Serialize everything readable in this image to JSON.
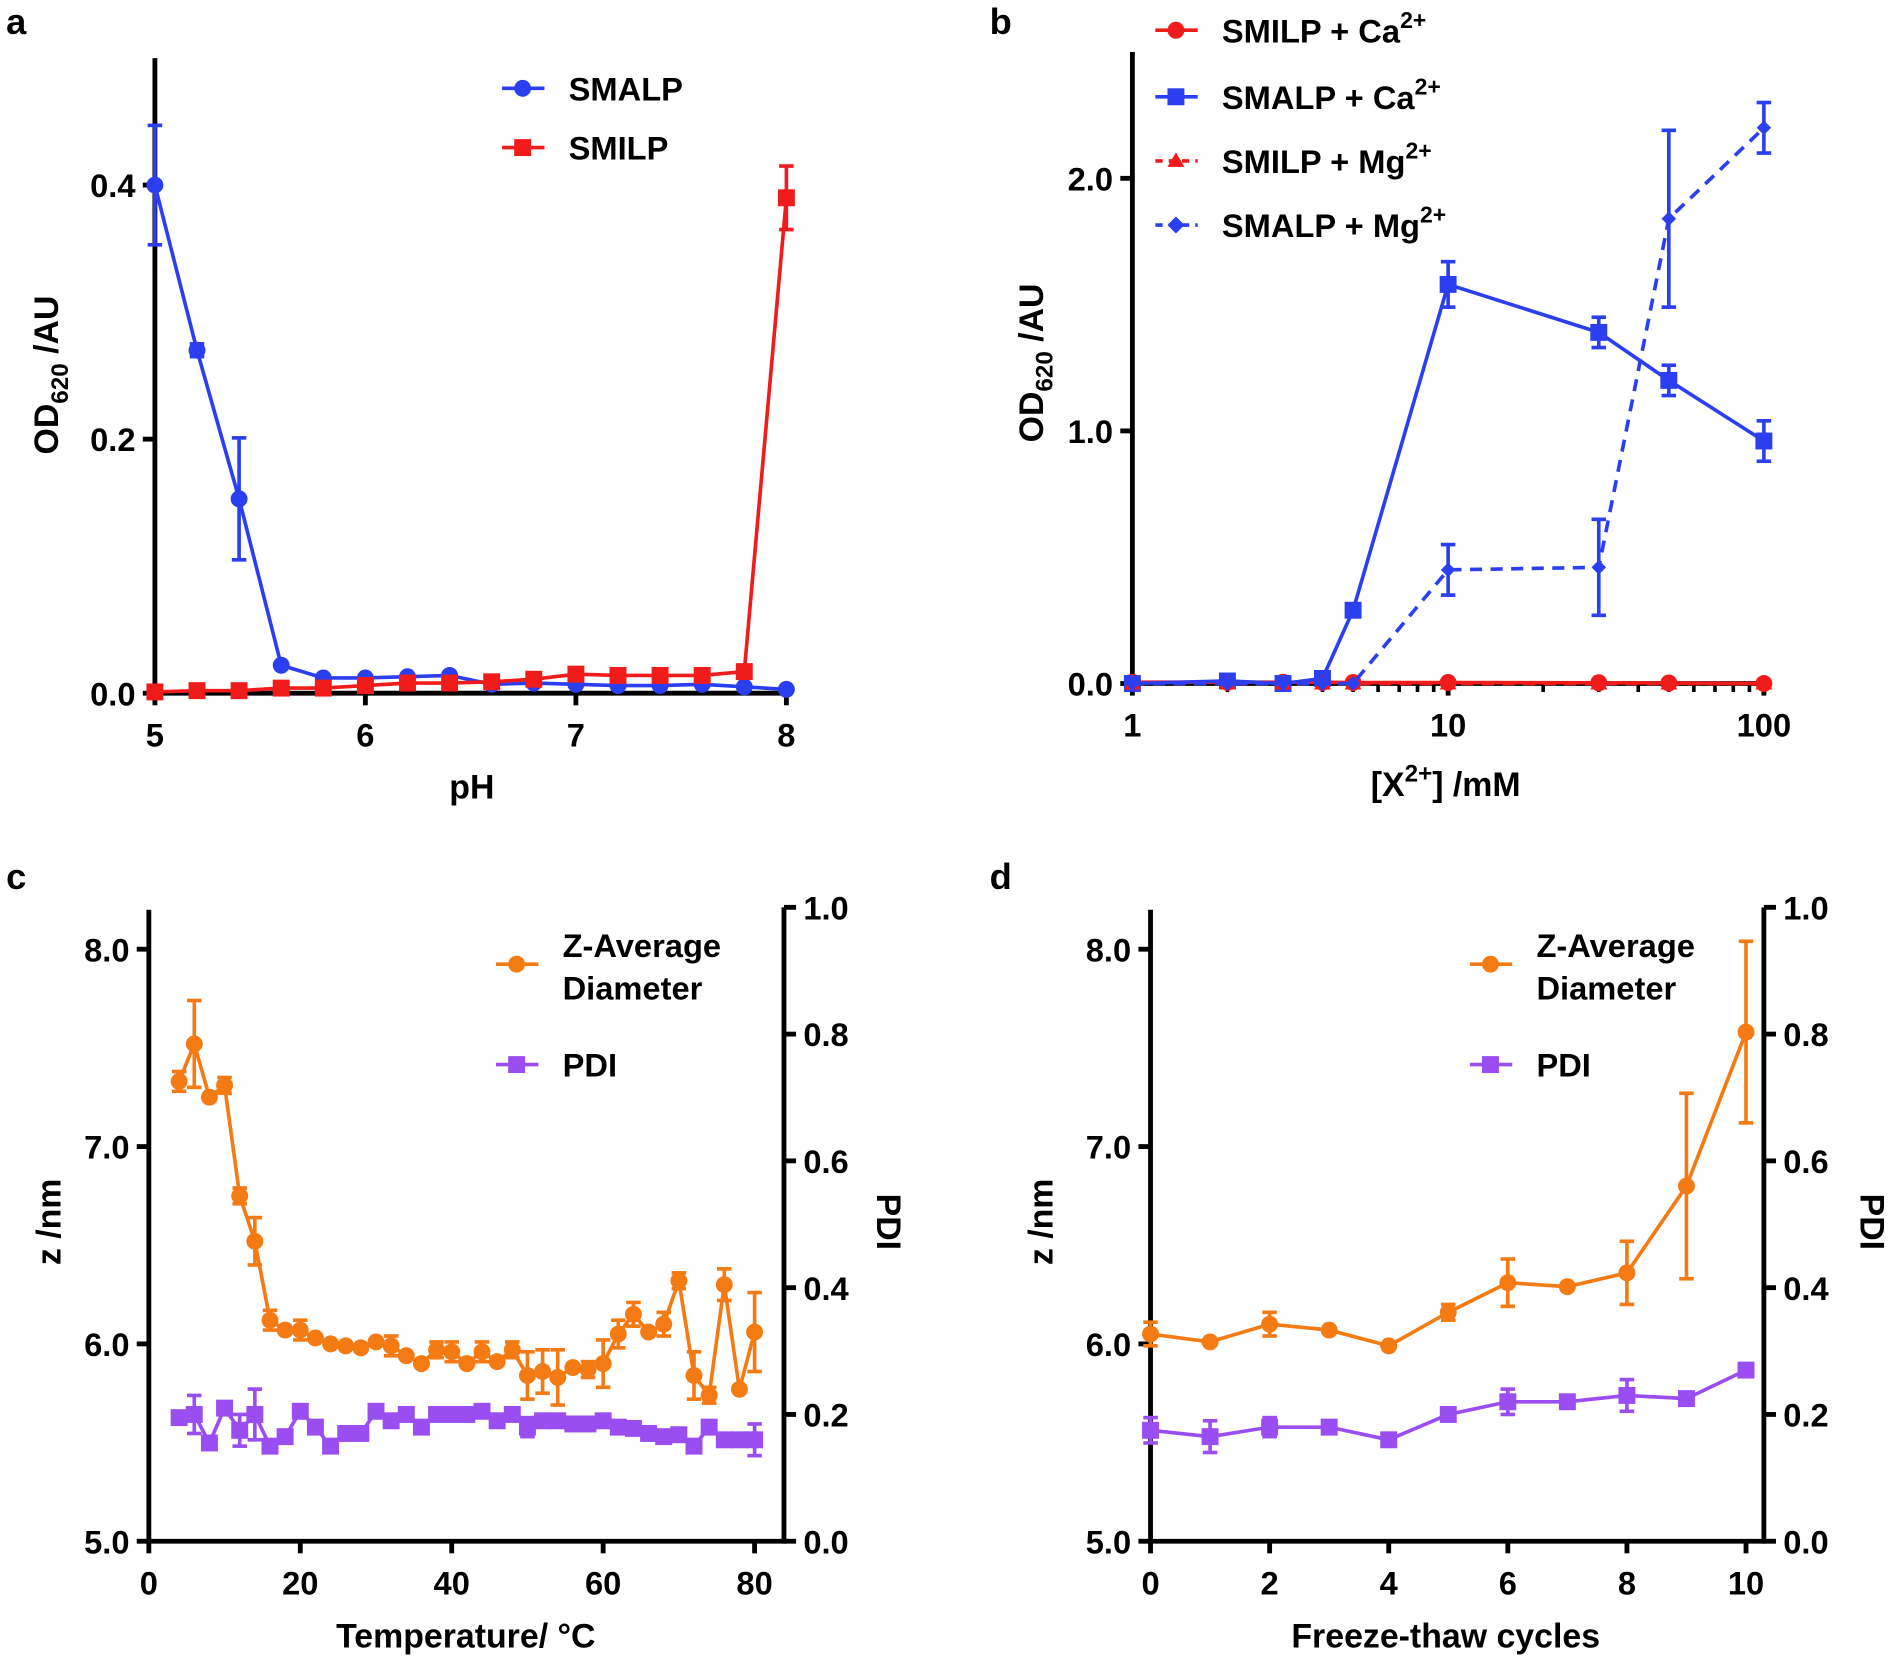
{
  "colors": {
    "blue": "#2b3ff0",
    "red": "#f01c1c",
    "orange": "#f47a14",
    "purple": "#9a4df0",
    "axis": "#000000"
  },
  "chart_data": [
    {
      "panel": "a",
      "type": "line",
      "xlabel": "pH",
      "ylabel": {
        "main": "OD",
        "sub": "620",
        "rest": " /AU"
      },
      "xlim": [
        5,
        8
      ],
      "ylim": [
        0,
        0.5
      ],
      "xscale": "linear",
      "xticks": [
        5,
        6,
        7,
        8
      ],
      "xtick_labels": [
        "5",
        "6",
        "7",
        "8"
      ],
      "yticks": [
        0,
        0.2,
        0.4
      ],
      "ytick_labels": [
        "0.0",
        "0.2",
        "0.4"
      ],
      "legend_position": "top-right",
      "series": [
        {
          "name": "SMALP",
          "sup": "",
          "color": "blue",
          "marker": "circle",
          "dash": false,
          "x": [
            5,
            5.2,
            5.4,
            5.6,
            5.8,
            6,
            6.2,
            6.4,
            6.6,
            6.8,
            7,
            7.2,
            7.4,
            7.6,
            7.8,
            8
          ],
          "y": [
            0.4,
            0.27,
            0.153,
            0.022,
            0.012,
            0.012,
            0.013,
            0.014,
            0.007,
            0.008,
            0.007,
            0.006,
            0.006,
            0.007,
            0.005,
            0.003
          ],
          "err": [
            0.047,
            0.005,
            0.048,
            0,
            0,
            0,
            0,
            0,
            0,
            0,
            0,
            0,
            0,
            0,
            0,
            0
          ]
        },
        {
          "name": "SMILP",
          "sup": "",
          "color": "red",
          "marker": "square",
          "dash": false,
          "x": [
            5,
            5.2,
            5.4,
            5.6,
            5.8,
            6,
            6.2,
            6.4,
            6.6,
            6.8,
            7,
            7.2,
            7.4,
            7.6,
            7.8,
            8
          ],
          "y": [
            0.001,
            0.002,
            0.002,
            0.004,
            0.004,
            0.006,
            0.008,
            0.008,
            0.009,
            0.011,
            0.015,
            0.014,
            0.014,
            0.014,
            0.017,
            0.39
          ],
          "err": [
            0,
            0,
            0,
            0,
            0,
            0,
            0,
            0,
            0,
            0,
            0,
            0,
            0,
            0,
            0,
            0.025
          ]
        }
      ]
    },
    {
      "panel": "b",
      "type": "line",
      "xlabel": {
        "pre": "[X",
        "sup": "2+",
        "post": "] /mM"
      },
      "ylabel": {
        "main": "OD",
        "sub": "620",
        "rest": " /AU"
      },
      "xlim": [
        1,
        100
      ],
      "ylim": [
        0,
        2.5
      ],
      "xscale": "log",
      "xticks": [
        1,
        10,
        100
      ],
      "xtick_labels": [
        "1",
        "10",
        "100"
      ],
      "yticks": [
        0,
        1,
        2
      ],
      "ytick_labels": [
        "0.0",
        "1.0",
        "2.0"
      ],
      "legend_position": "top-left",
      "series": [
        {
          "name": "SMILP + Ca",
          "sup": "2+",
          "color": "red",
          "marker": "circle",
          "dash": false,
          "x": [
            1,
            2,
            3,
            4,
            5,
            10,
            30,
            50,
            100
          ],
          "y": [
            0.005,
            0.005,
            0.005,
            0.005,
            0.004,
            0.004,
            0.003,
            0.002,
            0.0
          ],
          "err": [
            0,
            0,
            0,
            0,
            0,
            0,
            0,
            0,
            0
          ]
        },
        {
          "name": "SMALP + Ca",
          "sup": "2+",
          "color": "blue",
          "marker": "square",
          "dash": false,
          "x": [
            1,
            2,
            3,
            4,
            5,
            10,
            30,
            50,
            100
          ],
          "y": [
            0.0,
            0.01,
            0.0,
            0.02,
            0.29,
            1.58,
            1.39,
            1.2,
            0.96
          ],
          "err": [
            0,
            0,
            0,
            0,
            0,
            0.09,
            0.06,
            0.06,
            0.08
          ]
        },
        {
          "name": "SMILP + Mg",
          "sup": "2+",
          "color": "red",
          "marker": "triangle",
          "dash": true,
          "x": [
            1,
            2,
            3,
            4,
            5,
            10,
            30,
            50,
            100
          ],
          "y": [
            0.0,
            0.0,
            0.0,
            0.0,
            0.0,
            0.0,
            0.0,
            0.0,
            0.0
          ],
          "err": [
            0,
            0,
            0,
            0,
            0,
            0,
            0,
            0,
            0
          ]
        },
        {
          "name": "SMALP + Mg",
          "sup": "2+",
          "color": "blue",
          "marker": "diamond",
          "dash": true,
          "x": [
            1,
            2,
            3,
            4,
            5,
            10,
            30,
            50,
            100
          ],
          "y": [
            0.0,
            0.0,
            0.0,
            0.0,
            0.0,
            0.45,
            0.46,
            1.84,
            2.2
          ],
          "err": [
            0,
            0,
            0,
            0,
            0,
            0.1,
            0.19,
            0.35,
            0.1
          ]
        }
      ]
    },
    {
      "panel": "c",
      "type": "line",
      "xlabel": "Temperature/ °C",
      "ylabel": "z /nm",
      "y2label": "PDI",
      "xlim": [
        0,
        85
      ],
      "ylim": [
        5,
        8.2
      ],
      "y2lim": [
        0,
        1
      ],
      "xscale": "linear",
      "xticks": [
        0,
        20,
        40,
        60,
        80
      ],
      "xtick_labels": [
        "0",
        "20",
        "40",
        "60",
        "80"
      ],
      "yticks": [
        5,
        6,
        7,
        8
      ],
      "ytick_labels": [
        "5.0",
        "6.0",
        "7.0",
        "8.0"
      ],
      "y2ticks": [
        0,
        0.2,
        0.4,
        0.6,
        0.8,
        1.0
      ],
      "y2tick_labels": [
        "0.0",
        "0.2",
        "0.4",
        "0.6",
        "0.8",
        "1.0"
      ],
      "legend_position": "top-right",
      "series": [
        {
          "name": "Z-Average",
          "name2": "Diameter",
          "color": "orange",
          "marker": "circle",
          "axis": "left",
          "x": [
            4,
            6,
            8,
            10,
            12,
            14,
            16,
            18,
            20,
            22,
            24,
            26,
            28,
            30,
            32,
            34,
            36,
            38,
            40,
            42,
            44,
            46,
            48,
            50,
            52,
            54,
            56,
            58,
            60,
            62,
            64,
            66,
            68,
            70,
            72,
            74,
            76,
            78,
            80
          ],
          "y": [
            7.33,
            7.52,
            7.25,
            7.31,
            6.75,
            6.52,
            6.12,
            6.07,
            6.07,
            6.03,
            6.0,
            5.99,
            5.98,
            6.01,
            5.99,
            5.94,
            5.9,
            5.97,
            5.96,
            5.9,
            5.96,
            5.91,
            5.97,
            5.84,
            5.86,
            5.83,
            5.88,
            5.87,
            5.9,
            6.05,
            6.15,
            6.06,
            6.1,
            6.32,
            5.84,
            5.74,
            6.3,
            5.77,
            6.06
          ],
          "err": [
            0.05,
            0.22,
            0,
            0.04,
            0.04,
            0.12,
            0.05,
            0,
            0.05,
            0,
            0,
            0,
            0,
            0,
            0.05,
            0,
            0,
            0.04,
            0.05,
            0,
            0.05,
            0,
            0.04,
            0.12,
            0.11,
            0.14,
            0,
            0.04,
            0.12,
            0.07,
            0.06,
            0,
            0.06,
            0.04,
            0.12,
            0.04,
            0.08,
            0,
            0.2
          ]
        },
        {
          "name": "PDI",
          "color": "purple",
          "marker": "square",
          "axis": "right",
          "x": [
            4,
            6,
            8,
            10,
            12,
            14,
            16,
            18,
            20,
            22,
            24,
            26,
            28,
            30,
            32,
            34,
            36,
            38,
            40,
            42,
            44,
            46,
            48,
            50,
            52,
            54,
            56,
            58,
            60,
            62,
            64,
            66,
            68,
            70,
            72,
            74,
            76,
            78,
            80
          ],
          "y": [
            0.195,
            0.2,
            0.155,
            0.21,
            0.175,
            0.2,
            0.15,
            0.165,
            0.205,
            0.18,
            0.15,
            0.17,
            0.17,
            0.205,
            0.19,
            0.2,
            0.18,
            0.2,
            0.2,
            0.2,
            0.205,
            0.19,
            0.2,
            0.18,
            0.19,
            0.19,
            0.185,
            0.185,
            0.19,
            0.18,
            0.178,
            0.17,
            0.165,
            0.168,
            0.15,
            0.18,
            0.16,
            0.16,
            0.16
          ],
          "err": [
            0,
            0.03,
            0,
            0,
            0.025,
            0.04,
            0,
            0,
            0,
            0,
            0,
            0,
            0,
            0,
            0,
            0,
            0,
            0,
            0,
            0,
            0,
            0,
            0,
            0.015,
            0,
            0,
            0,
            0,
            0,
            0,
            0,
            0,
            0,
            0,
            0,
            0,
            0,
            0,
            0.025
          ]
        }
      ]
    },
    {
      "panel": "d",
      "type": "line",
      "xlabel": "Freeze-thaw cycles",
      "ylabel": "z /nm",
      "y2label": "PDI",
      "xlim": [
        0,
        10.3
      ],
      "ylim": [
        5,
        8.2
      ],
      "y2lim": [
        0,
        1
      ],
      "xscale": "linear",
      "xticks": [
        0,
        2,
        4,
        6,
        8,
        10
      ],
      "xtick_labels": [
        "0",
        "2",
        "4",
        "6",
        "8",
        "10"
      ],
      "yticks": [
        5,
        6,
        7,
        8
      ],
      "ytick_labels": [
        "5.0",
        "6.0",
        "7.0",
        "8.0"
      ],
      "y2ticks": [
        0,
        0.2,
        0.4,
        0.6,
        0.8,
        1.0
      ],
      "y2tick_labels": [
        "0.0",
        "0.2",
        "0.4",
        "0.6",
        "0.8",
        "1.0"
      ],
      "legend_position": "top-right",
      "series": [
        {
          "name": "Z-Average",
          "name2": "Diameter",
          "color": "orange",
          "marker": "circle",
          "axis": "left",
          "x": [
            0,
            1,
            2,
            3,
            4,
            5,
            6,
            7,
            8,
            9,
            10
          ],
          "y": [
            6.05,
            6.01,
            6.1,
            6.07,
            5.99,
            6.16,
            6.31,
            6.29,
            6.36,
            6.8,
            7.58
          ],
          "err": [
            0.06,
            0,
            0.06,
            0,
            0,
            0.04,
            0.12,
            0,
            0.16,
            0.47,
            0.46
          ]
        },
        {
          "name": "PDI",
          "color": "purple",
          "marker": "square",
          "axis": "right",
          "x": [
            0,
            1,
            2,
            3,
            4,
            5,
            6,
            7,
            8,
            9,
            10
          ],
          "y": [
            0.175,
            0.165,
            0.18,
            0.18,
            0.16,
            0.2,
            0.22,
            0.22,
            0.23,
            0.225,
            0.27
          ],
          "err": [
            0.02,
            0.025,
            0.015,
            0,
            0,
            0,
            0.02,
            0,
            0.025,
            0,
            0
          ]
        }
      ]
    }
  ]
}
